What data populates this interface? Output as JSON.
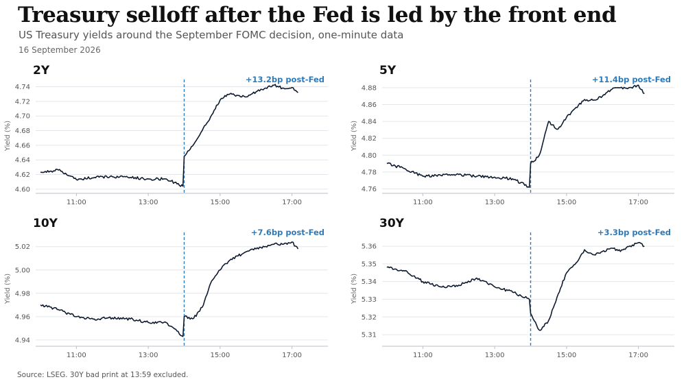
{
  "title": "Treasury selloff after the Fed is led by the front end",
  "subtitle": "US Treasury yields around the September FOMC decision, one-minute data",
  "date": "16 September 2026",
  "source": "Source: LSEG. 30Y bad print at 13:59 excluded.",
  "colors": {
    "line": "#0e1a2e",
    "fed_line": "#2f7ab8",
    "annotation": "#2f7ab8",
    "grid": "#e3e6ea"
  },
  "chart_data": [
    {
      "type": "line",
      "panel": "2Y",
      "annotation": "+13.2bp post-Fed",
      "ylabel": "Yield (%)",
      "x_ticks": [
        "11:00",
        "13:00",
        "15:00",
        "17:00"
      ],
      "y_ticks": [
        "4.60",
        "4.62",
        "4.64",
        "4.66",
        "4.68",
        "4.70",
        "4.72",
        "4.74"
      ],
      "xlim": [
        "09:52",
        "18:00"
      ],
      "ylim": [
        4.598,
        4.748
      ],
      "grid": true,
      "fed_time": "14:00",
      "x": [
        "10:00",
        "10:30",
        "11:00",
        "11:30",
        "12:00",
        "12:30",
        "13:00",
        "13:30",
        "13:58",
        "14:00",
        "14:15",
        "14:30",
        "14:45",
        "15:00",
        "15:15",
        "15:30",
        "15:45",
        "16:00",
        "16:15",
        "16:30",
        "16:45",
        "17:00",
        "17:10"
      ],
      "y": [
        4.623,
        4.626,
        4.613,
        4.616,
        4.617,
        4.616,
        4.614,
        4.614,
        4.604,
        4.645,
        4.66,
        4.68,
        4.7,
        4.722,
        4.73,
        4.728,
        4.726,
        4.733,
        4.738,
        4.742,
        4.738,
        4.739,
        4.732
      ]
    },
    {
      "type": "line",
      "panel": "5Y",
      "annotation": "+11.4bp post-Fed",
      "ylabel": "Yield (%)",
      "x_ticks": [
        "11:00",
        "13:00",
        "15:00",
        "17:00"
      ],
      "y_ticks": [
        "4.76",
        "4.78",
        "4.80",
        "4.82",
        "4.84",
        "4.86",
        "4.88"
      ],
      "xlim": [
        "09:52",
        "18:00"
      ],
      "ylim": [
        4.758,
        4.888
      ],
      "grid": true,
      "fed_time": "14:00",
      "x": [
        "10:00",
        "10:30",
        "11:00",
        "11:30",
        "12:00",
        "12:30",
        "13:00",
        "13:30",
        "13:58",
        "14:00",
        "14:15",
        "14:30",
        "14:45",
        "15:00",
        "15:15",
        "15:30",
        "15:45",
        "16:00",
        "16:15",
        "16:30",
        "16:45",
        "17:00",
        "17:10"
      ],
      "y": [
        4.79,
        4.784,
        4.775,
        4.776,
        4.777,
        4.775,
        4.774,
        4.772,
        4.762,
        4.79,
        4.8,
        4.84,
        4.83,
        4.845,
        4.856,
        4.866,
        4.865,
        4.87,
        4.878,
        4.88,
        4.88,
        4.883,
        4.873
      ]
    },
    {
      "type": "line",
      "panel": "10Y",
      "annotation": "+7.6bp post-Fed",
      "ylabel": "Yield (%)",
      "x_ticks": [
        "11:00",
        "13:00",
        "15:00",
        "17:00"
      ],
      "y_ticks": [
        "4.94",
        "4.96",
        "4.98",
        "5.00",
        "5.02"
      ],
      "xlim": [
        "09:52",
        "18:00"
      ],
      "ylim": [
        4.937,
        5.031
      ],
      "grid": true,
      "fed_time": "14:00",
      "x": [
        "10:00",
        "10:30",
        "11:00",
        "11:30",
        "12:00",
        "12:30",
        "13:00",
        "13:30",
        "13:58",
        "14:00",
        "14:15",
        "14:30",
        "14:45",
        "15:00",
        "15:15",
        "15:30",
        "15:45",
        "16:00",
        "16:15",
        "16:30",
        "16:45",
        "17:00",
        "17:10"
      ],
      "y": [
        4.97,
        4.966,
        4.96,
        4.958,
        4.959,
        4.958,
        4.955,
        4.955,
        4.943,
        4.96,
        4.958,
        4.968,
        4.99,
        5.0,
        5.008,
        5.012,
        5.016,
        5.018,
        5.02,
        5.022,
        5.022,
        5.024,
        5.018
      ]
    },
    {
      "type": "line",
      "panel": "30Y",
      "annotation": "+3.3bp post-Fed",
      "ylabel": "Yield (%)",
      "x_ticks": [
        "11:00",
        "13:00",
        "15:00",
        "17:00"
      ],
      "y_ticks": [
        "5.31",
        "5.32",
        "5.33",
        "5.34",
        "5.35",
        "5.36"
      ],
      "xlim": [
        "09:52",
        "18:00"
      ],
      "ylim": [
        5.305,
        5.367
      ],
      "grid": true,
      "fed_time": "14:00",
      "x": [
        "10:00",
        "10:30",
        "11:00",
        "11:30",
        "12:00",
        "12:30",
        "13:00",
        "13:30",
        "13:58",
        "14:00",
        "14:15",
        "14:30",
        "14:45",
        "15:00",
        "15:15",
        "15:30",
        "15:45",
        "16:00",
        "16:15",
        "16:30",
        "16:45",
        "17:00",
        "17:10"
      ],
      "y": [
        5.348,
        5.346,
        5.34,
        5.337,
        5.338,
        5.342,
        5.337,
        5.334,
        5.33,
        5.322,
        5.312,
        5.318,
        5.332,
        5.345,
        5.35,
        5.358,
        5.355,
        5.357,
        5.359,
        5.357,
        5.36,
        5.362,
        5.36
      ]
    }
  ]
}
